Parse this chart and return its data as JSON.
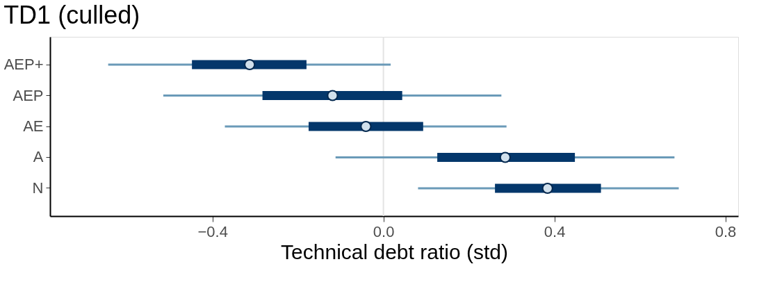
{
  "chart_data": {
    "type": "bar",
    "title": "TD1 (culled)",
    "xlabel": "Technical debt ratio (std)",
    "orientation": "horizontal",
    "categories": [
      "AEP+",
      "AEP",
      "AE",
      "A",
      "N"
    ],
    "series": [
      {
        "type": "bar",
        "color": "#04376b",
        "base": [
          -0.448,
          -0.283,
          -0.175,
          0.126,
          0.261
        ],
        "values": [
          0.268,
          0.327,
          0.268,
          0.322,
          0.248
        ]
      },
      {
        "type": "scatter",
        "color": "#d1e0ec",
        "values": [
          -0.313,
          -0.119,
          -0.041,
          0.285,
          0.384
        ],
        "errors": [
          [
            -0.644,
            0.017
          ],
          [
            -0.515,
            0.276
          ],
          [
            -0.371,
            0.288
          ],
          [
            -0.112,
            0.681
          ],
          [
            0.081,
            0.691
          ]
        ]
      }
    ],
    "xlim": [
      -0.78,
      0.83
    ],
    "xticks": [
      {
        "value": -0.4,
        "label": "−0.4"
      },
      {
        "value": 0,
        "label": "0.0"
      },
      0.4,
      0.8
    ],
    "ref_lines": [
      {
        "axis": "x",
        "value": 0,
        "color": "#e3e3e3"
      }
    ],
    "marker": "circle",
    "grid": false
  }
}
